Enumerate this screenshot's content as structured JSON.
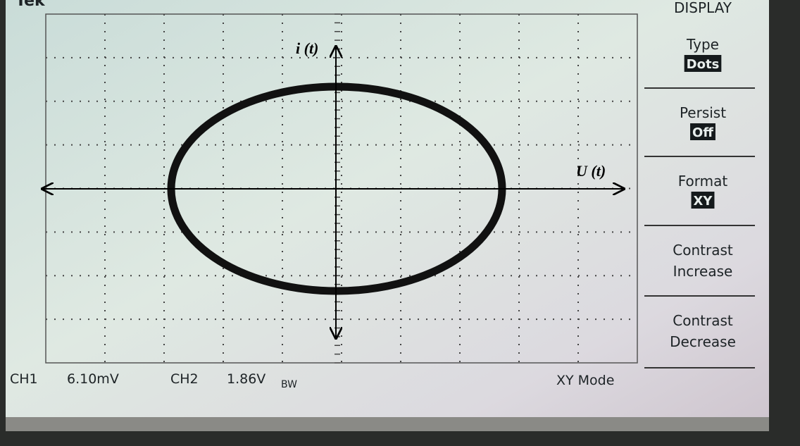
{
  "header": {
    "brand": "Tek"
  },
  "menu": {
    "title": "DISPLAY",
    "items": [
      {
        "label": "Type",
        "value": "Dots"
      },
      {
        "label": "Persist",
        "value": "Off"
      },
      {
        "label": "Format",
        "value": "XY"
      },
      {
        "label": [
          "Contrast",
          "Increase"
        ]
      },
      {
        "label": [
          "Contrast",
          "Decrease"
        ]
      }
    ]
  },
  "status": {
    "ch1": "CH1",
    "ch1_scale": "6.10mV",
    "ch2": "CH2",
    "ch2_scale": "1.86V",
    "bw": "BW",
    "mode": "XY Mode"
  },
  "axes": {
    "y_label": "i (t)",
    "x_label": "U (t)"
  }
}
